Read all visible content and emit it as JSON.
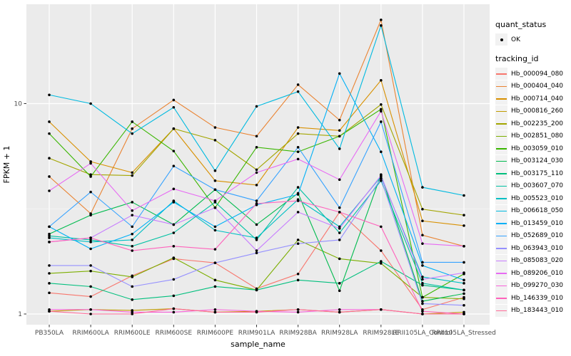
{
  "figure": {
    "background": "#FFFFFF",
    "panel_background": "#EBEBEB",
    "gridline_color": "#FFFFFF",
    "tick_color": "#333333",
    "tick_label_color": "#4D4D4D",
    "axis_title_color": "#000000",
    "point_color": "#000000",
    "legend_key_background": "#F2F2F2"
  },
  "axes": {
    "x_title": "sample_name",
    "y_title": "FPKM + 1",
    "y_scale": "log10",
    "y_tick_labels": [
      "10",
      "1"
    ],
    "y_major_values": [
      10,
      1
    ],
    "y_minor_values": [
      3.1623
    ]
  },
  "legend": {
    "quant_status": {
      "title": "quant_status",
      "items": [
        {
          "label": "OK",
          "marker": "black-point"
        }
      ]
    },
    "tracking_id": {
      "title": "tracking_id"
    }
  },
  "chart_data": {
    "type": "line",
    "title": "",
    "xlabel": "sample_name",
    "ylabel": "FPKM + 1",
    "legend_position": "right",
    "grid": true,
    "y_axis": {
      "scale": "log10",
      "ticks": [
        1,
        10
      ],
      "range_approx": [
        0.95,
        30
      ]
    },
    "point_marker": "black dot (quant_status = OK) at every observation",
    "categories": [
      "PB350LA",
      "RRIM600LA",
      "RRIM600LE",
      "RRIM600SE",
      "RRIM600PE",
      "RRIM901LA",
      "RRIM928BA",
      "RRIM928LA",
      "RRIM928LE",
      "RRII105LA_Control",
      "RRII105LA_Stressed"
    ],
    "series": [
      {
        "name": "Hb_000094_080",
        "color": "#F8766D",
        "values": [
          1.26,
          1.21,
          1.52,
          1.83,
          1.75,
          1.32,
          1.55,
          3.05,
          2.0,
          1.05,
          1.2
        ]
      },
      {
        "name": "Hb_000404_040",
        "color": "#EA8331",
        "values": [
          4.5,
          3.0,
          7.6,
          10.4,
          7.7,
          7.0,
          12.3,
          8.35,
          25.0,
          2.37,
          2.1
        ]
      },
      {
        "name": "Hb_000714_040",
        "color": "#D89000",
        "values": [
          8.2,
          5.3,
          4.7,
          7.6,
          4.3,
          4.1,
          7.7,
          7.45,
          12.9,
          2.77,
          2.63
        ]
      },
      {
        "name": "Hb_000816_260",
        "color": "#C09B00",
        "values": [
          1.03,
          1.05,
          1.04,
          1.06,
          1.02,
          1.03,
          1.05,
          1.02,
          1.05,
          1.0,
          1.02
        ]
      },
      {
        "name": "Hb_002235_200",
        "color": "#A3A500",
        "values": [
          5.5,
          4.6,
          4.55,
          7.6,
          6.7,
          4.85,
          7.2,
          7.0,
          9.9,
          3.15,
          2.95
        ]
      },
      {
        "name": "Hb_002851_080",
        "color": "#7CAE00",
        "values": [
          1.56,
          1.6,
          1.5,
          1.85,
          1.45,
          1.3,
          2.25,
          1.83,
          1.74,
          1.2,
          1.18
        ]
      },
      {
        "name": "Hb_003059_010",
        "color": "#39B600",
        "values": [
          7.2,
          4.5,
          8.2,
          5.95,
          3.2,
          6.2,
          5.9,
          7.0,
          9.4,
          1.2,
          1.55
        ]
      },
      {
        "name": "Hb_003124_030",
        "color": "#00BB4E",
        "values": [
          2.4,
          2.95,
          3.4,
          2.66,
          3.9,
          2.66,
          3.75,
          1.29,
          4.6,
          1.15,
          1.25
        ]
      },
      {
        "name": "Hb_003175_110",
        "color": "#00BF7D",
        "values": [
          1.4,
          1.35,
          1.17,
          1.22,
          1.35,
          1.3,
          1.45,
          1.4,
          1.78,
          1.37,
          1.3
        ]
      },
      {
        "name": "Hb_003607_070",
        "color": "#00C1A3",
        "values": [
          2.35,
          2.25,
          2.1,
          2.43,
          3.4,
          2.25,
          4.0,
          2.43,
          4.3,
          1.4,
          1.3
        ]
      },
      {
        "name": "Hb_005523_010",
        "color": "#00BFC4",
        "values": [
          2.3,
          2.2,
          2.25,
          3.45,
          2.5,
          2.3,
          3.5,
          2.6,
          4.5,
          1.5,
          1.4
        ]
      },
      {
        "name": "Hb_006618_050",
        "color": "#00BAE0",
        "values": [
          11.0,
          10.0,
          7.2,
          9.6,
          4.8,
          9.7,
          11.4,
          6.1,
          23.5,
          4.0,
          3.66
        ]
      },
      {
        "name": "Hb_013459_010",
        "color": "#00B0F6",
        "values": [
          2.6,
          2.04,
          2.4,
          3.4,
          2.6,
          3.3,
          3.7,
          13.9,
          5.9,
          1.7,
          1.45
        ]
      },
      {
        "name": "Hb_052689_010",
        "color": "#35A2FF",
        "values": [
          2.6,
          3.8,
          2.6,
          5.05,
          3.9,
          3.45,
          6.2,
          3.2,
          8.2,
          1.76,
          1.76
        ]
      },
      {
        "name": "Hb_063943_010",
        "color": "#9590FF",
        "values": [
          1.7,
          1.7,
          1.35,
          1.46,
          1.75,
          1.95,
          2.16,
          2.25,
          4.4,
          1.12,
          1.1
        ]
      },
      {
        "name": "Hb_085083_020",
        "color": "#C77CFF",
        "values": [
          2.2,
          2.3,
          2.95,
          2.66,
          3.2,
          2.0,
          3.05,
          2.55,
          4.55,
          1.46,
          1.57
        ]
      },
      {
        "name": "Hb_089206_010",
        "color": "#E76BF3",
        "values": [
          3.85,
          5.2,
          3.1,
          3.93,
          3.45,
          4.7,
          5.45,
          4.35,
          9.2,
          2.16,
          2.1
        ]
      },
      {
        "name": "Hb_099270_030",
        "color": "#FA62DB",
        "values": [
          1.05,
          1.05,
          1.02,
          1.02,
          1.05,
          1.03,
          1.02,
          1.05,
          1.05,
          1.0,
          1.0
        ]
      },
      {
        "name": "Hb_146339_010",
        "color": "#FF62BC",
        "values": [
          2.2,
          2.3,
          2.0,
          2.1,
          2.03,
          3.35,
          3.45,
          3.05,
          2.6,
          1.03,
          1.0
        ]
      },
      {
        "name": "Hb_183443_010",
        "color": "#FF6A98",
        "values": [
          1.03,
          1.0,
          1.0,
          1.06,
          1.02,
          1.02,
          1.05,
          1.02,
          1.05,
          1.0,
          1.0
        ]
      }
    ]
  }
}
